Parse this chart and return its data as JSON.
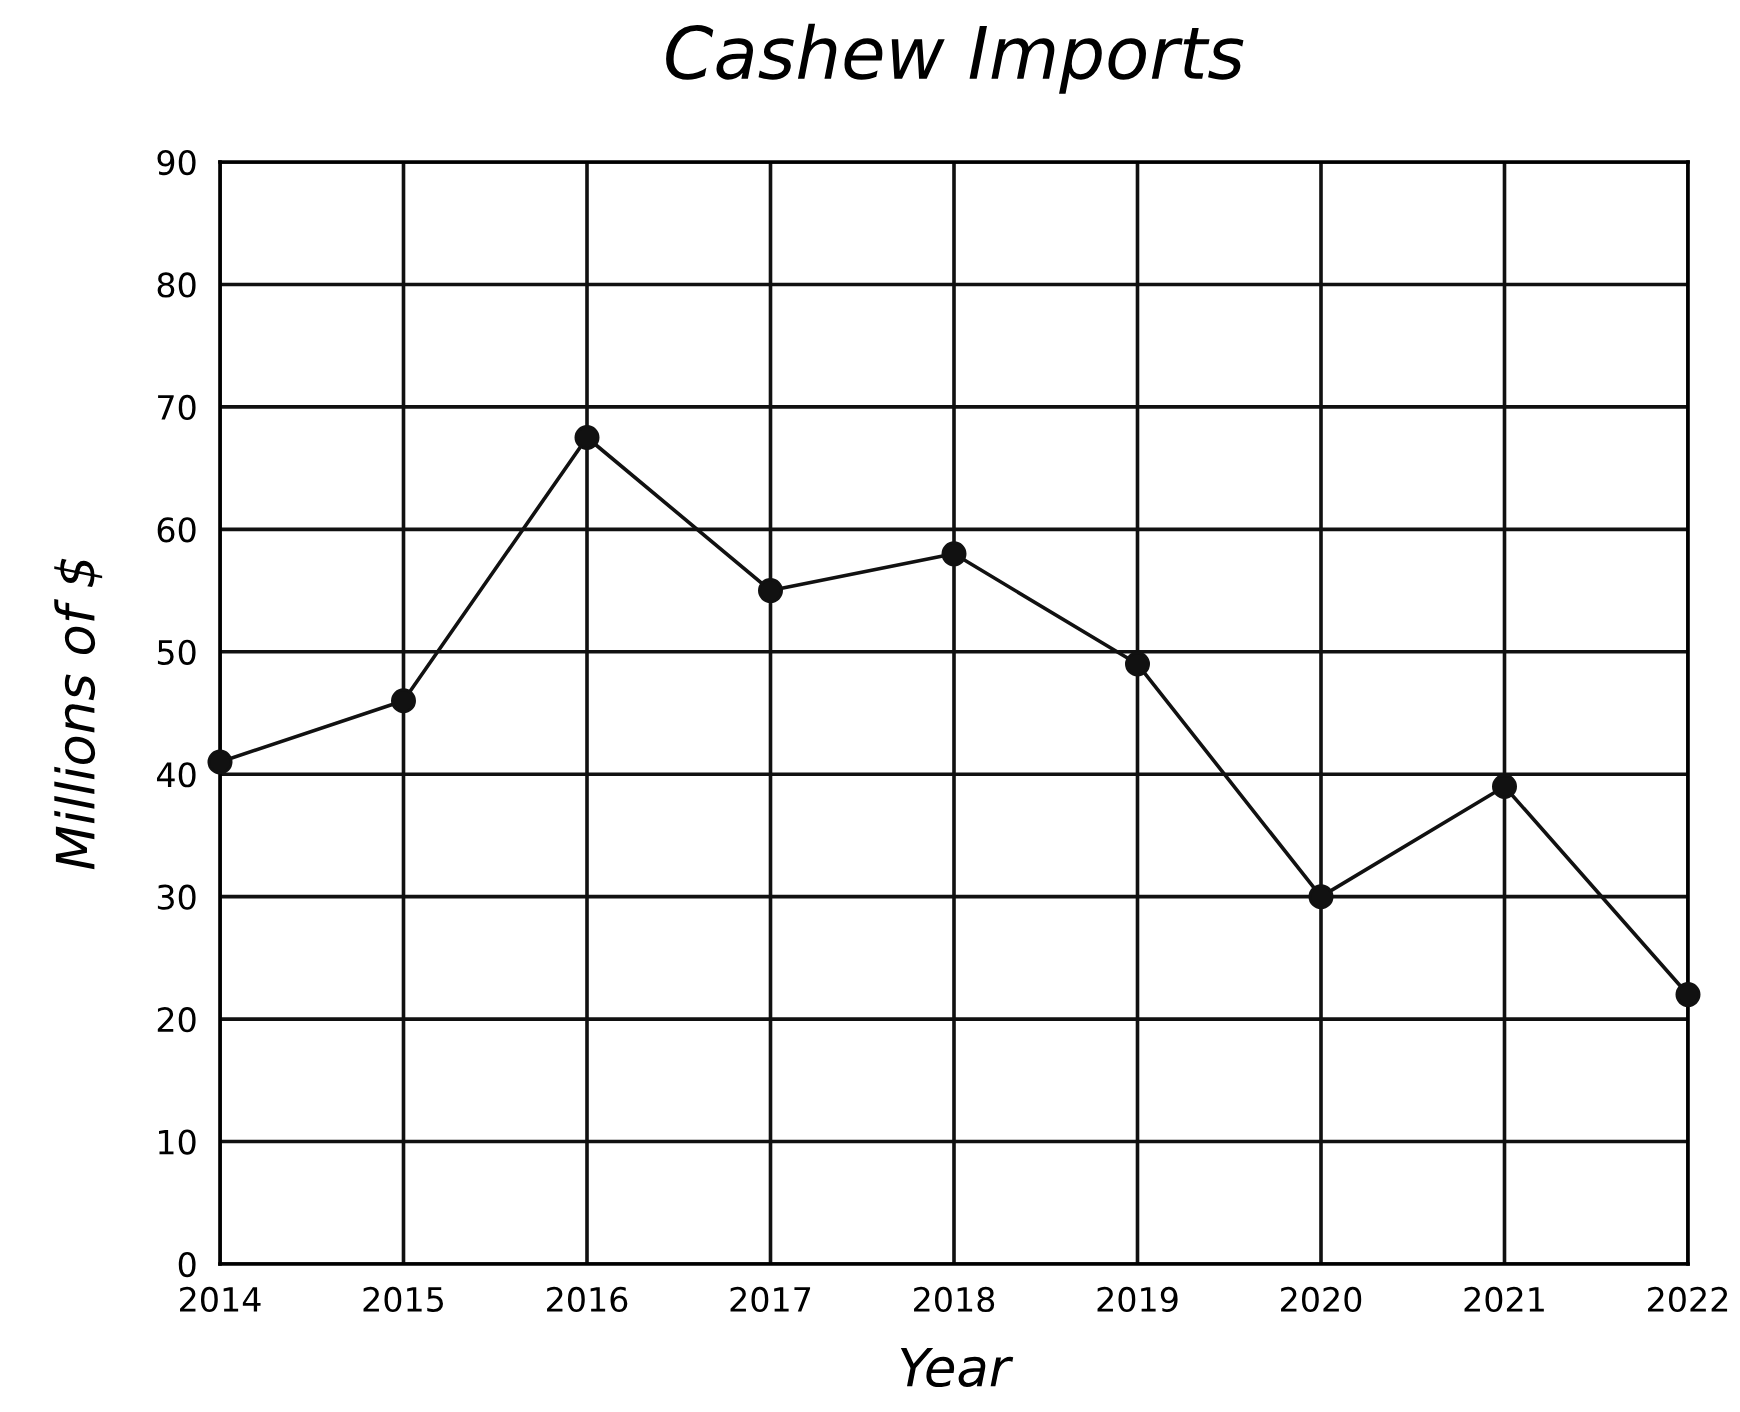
{
  "chart_data": {
    "type": "line",
    "title": "Cashew Imports",
    "xlabel": "Year",
    "ylabel": "Millions of $",
    "x": [
      2014,
      2015,
      2016,
      2017,
      2018,
      2019,
      2020,
      2021,
      2022
    ],
    "series": [
      {
        "color": "#111111",
        "values": [
          41,
          46,
          67.5,
          55,
          58,
          49,
          30,
          39,
          22
        ]
      }
    ],
    "xlim": [
      2014,
      2022
    ],
    "xticks": [
      2014,
      2015,
      2016,
      2017,
      2018,
      2019,
      2020,
      2021,
      2022
    ],
    "ylim": [
      0,
      90
    ],
    "yticks": [
      0,
      10,
      20,
      30,
      40,
      50,
      60,
      70,
      80,
      90
    ],
    "grid": true,
    "marker": "circle",
    "line_style": "solid",
    "legend": false
  }
}
